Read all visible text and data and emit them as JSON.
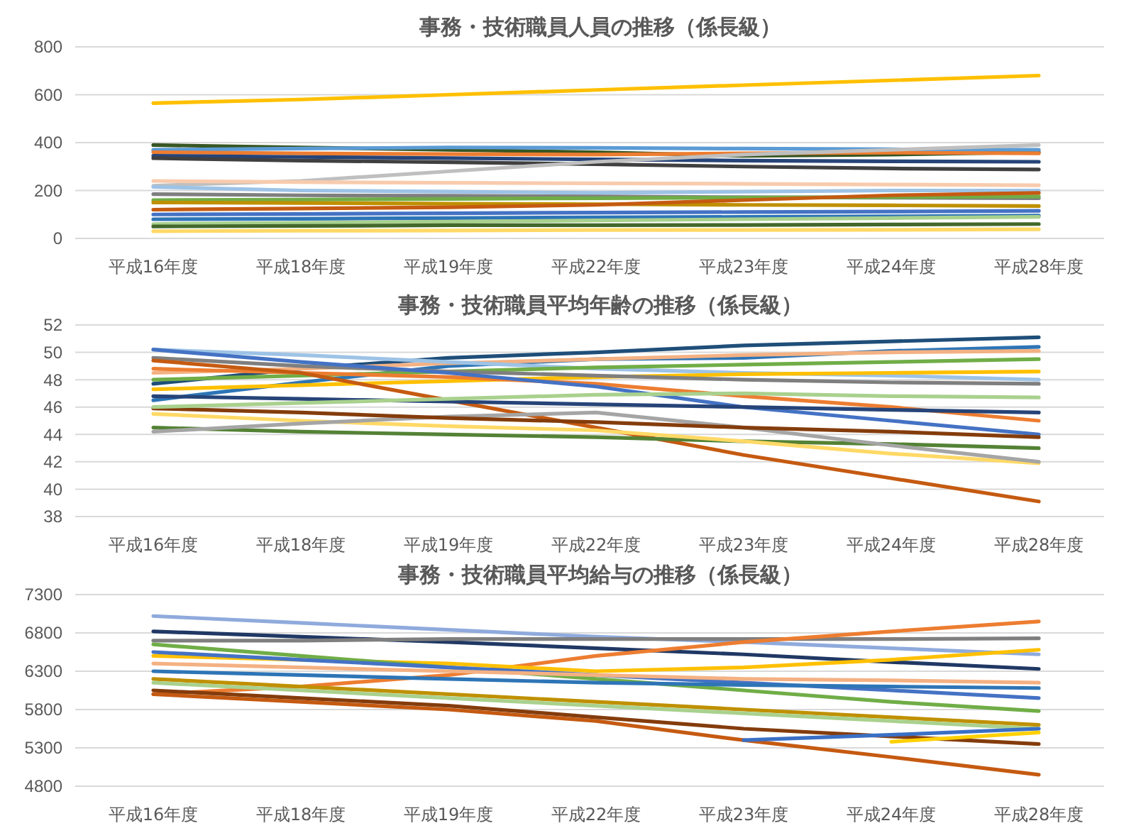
{
  "chart_data": [
    {
      "type": "line",
      "title": "事務・技術職員人員の推移（係長級）",
      "categories": [
        "平成16年度",
        "平成18年度",
        "平成19年度",
        "平成22年度",
        "平成23年度",
        "平成24年度",
        "平成28年度"
      ],
      "ylim": [
        0,
        800
      ],
      "yticks": [
        0,
        200,
        400,
        600,
        800
      ],
      "grid": "y",
      "series": [
        {
          "color": "#ffc000",
          "values": [
            565,
            580,
            600,
            620,
            640,
            660,
            680
          ]
        },
        {
          "color": "#375623",
          "values": [
            390,
            380,
            370,
            360,
            345,
            350,
            360
          ]
        },
        {
          "color": "#5b9bd5",
          "values": [
            370,
            375,
            380,
            378,
            375,
            372,
            370
          ]
        },
        {
          "color": "#ed7d31",
          "values": [
            360,
            355,
            352,
            350,
            355,
            358,
            355
          ]
        },
        {
          "color": "#264478",
          "values": [
            345,
            340,
            335,
            330,
            325,
            322,
            320
          ]
        },
        {
          "color": "#404040",
          "values": [
            335,
            325,
            318,
            310,
            300,
            292,
            288
          ]
        },
        {
          "color": "#bfbfbf",
          "values": [
            220,
            240,
            280,
            320,
            350,
            370,
            390
          ]
        },
        {
          "color": "#f8cbad",
          "values": [
            240,
            235,
            232,
            230,
            228,
            225,
            222
          ]
        },
        {
          "color": "#9dc3e6",
          "values": [
            215,
            200,
            195,
            190,
            195,
            200,
            200
          ]
        },
        {
          "color": "#7f7f7f",
          "values": [
            185,
            180,
            178,
            175,
            172,
            170,
            168
          ]
        },
        {
          "color": "#70ad47",
          "values": [
            160,
            162,
            165,
            168,
            170,
            172,
            175
          ]
        },
        {
          "color": "#bf9000",
          "values": [
            150,
            148,
            145,
            143,
            140,
            138,
            135
          ]
        },
        {
          "color": "#c55a11",
          "values": [
            120,
            125,
            130,
            140,
            160,
            180,
            190
          ]
        },
        {
          "color": "#4472c4",
          "values": [
            100,
            102,
            105,
            108,
            110,
            112,
            115
          ]
        },
        {
          "color": "#2e75b6",
          "values": [
            80,
            82,
            85,
            88,
            90,
            92,
            95
          ]
        },
        {
          "color": "#a9d18e",
          "values": [
            60,
            65,
            70,
            75,
            80,
            85,
            90
          ]
        },
        {
          "color": "#43682b",
          "values": [
            50,
            52,
            55,
            55,
            56,
            58,
            60
          ]
        },
        {
          "color": "#ffd966",
          "values": [
            30,
            32,
            33,
            35,
            35,
            36,
            38
          ]
        }
      ]
    },
    {
      "type": "line",
      "title": "事務・技術職員平均年齢の推移（係長級）",
      "categories": [
        "平成16年度",
        "平成18年度",
        "平成19年度",
        "平成22年度",
        "平成23年度",
        "平成24年度",
        "平成28年度"
      ],
      "ylim": [
        38,
        52
      ],
      "yticks": [
        38,
        40,
        42,
        44,
        46,
        48,
        50,
        52
      ],
      "grid": "y",
      "series": [
        {
          "color": "#1f4e79",
          "values": [
            47.7,
            48.8,
            49.6,
            50.0,
            50.5,
            50.8,
            51.1
          ]
        },
        {
          "color": "#2e75b6",
          "values": [
            46.5,
            47.8,
            49.0,
            49.5,
            49.6,
            50.1,
            50.4
          ]
        },
        {
          "color": "#f4b183",
          "values": [
            48.5,
            48.8,
            49.2,
            49.5,
            49.8,
            50.0,
            50.1
          ]
        },
        {
          "color": "#9dc3e6",
          "values": [
            50.2,
            49.8,
            49.3,
            48.8,
            48.5,
            48.3,
            48.0
          ]
        },
        {
          "color": "#70ad47",
          "values": [
            48.0,
            48.3,
            48.6,
            48.9,
            49.1,
            49.3,
            49.5
          ]
        },
        {
          "color": "#ffc000",
          "values": [
            47.3,
            47.6,
            47.9,
            48.2,
            48.4,
            48.5,
            48.6
          ]
        },
        {
          "color": "#7f7f7f",
          "values": [
            49.6,
            49.0,
            48.6,
            48.3,
            48.0,
            47.8,
            47.7
          ]
        },
        {
          "color": "#ed7d31",
          "values": [
            48.8,
            48.5,
            48.2,
            47.7,
            46.8,
            46.0,
            45.0
          ]
        },
        {
          "color": "#4472c4",
          "values": [
            50.2,
            49.3,
            48.5,
            47.5,
            46.0,
            45.0,
            44.0
          ]
        },
        {
          "color": "#c55a11",
          "values": [
            49.4,
            48.5,
            46.5,
            44.5,
            42.5,
            40.8,
            39.1
          ]
        },
        {
          "color": "#548235",
          "values": [
            44.5,
            44.2,
            44.0,
            43.8,
            43.5,
            43.3,
            43.0
          ]
        },
        {
          "color": "#ffd966",
          "values": [
            45.5,
            45.0,
            44.6,
            44.3,
            43.5,
            42.6,
            41.9
          ]
        },
        {
          "color": "#a5a5a5",
          "values": [
            44.2,
            44.8,
            45.3,
            45.6,
            44.5,
            43.2,
            42.0
          ]
        },
        {
          "color": "#843c0c",
          "values": [
            45.9,
            45.6,
            45.2,
            44.9,
            44.5,
            44.2,
            43.8
          ]
        },
        {
          "color": "#264478",
          "values": [
            46.8,
            46.6,
            46.4,
            46.2,
            46.0,
            45.8,
            45.6
          ]
        },
        {
          "color": "#a9d18e",
          "values": [
            46.0,
            46.3,
            46.6,
            46.9,
            47.0,
            46.8,
            46.7
          ]
        }
      ]
    },
    {
      "type": "line",
      "title": "事務・技術職員平均給与の推移（係長級）",
      "categories": [
        "平成16年度",
        "平成18年度",
        "平成19年度",
        "平成22年度",
        "平成23年度",
        "平成24年度",
        "平成28年度"
      ],
      "ylim": [
        4800,
        7300
      ],
      "yticks": [
        4800,
        5300,
        5800,
        6300,
        6800,
        7300
      ],
      "grid": "y",
      "series": [
        {
          "color": "#8faadc",
          "values": [
            7020,
            6930,
            6840,
            6750,
            6680,
            6600,
            6520
          ]
        },
        {
          "color": "#203864",
          "values": [
            6820,
            6750,
            6680,
            6600,
            6520,
            6420,
            6330
          ]
        },
        {
          "color": "#7f7f7f",
          "values": [
            6700,
            6700,
            6720,
            6720,
            6720,
            6720,
            6730
          ]
        },
        {
          "color": "#ed7d31",
          "values": [
            6000,
            6100,
            6250,
            6500,
            6680,
            6820,
            6950
          ]
        },
        {
          "color": "#ffc000",
          "values": [
            6500,
            6450,
            6400,
            6300,
            6350,
            6450,
            6580
          ]
        },
        {
          "color": "#70ad47",
          "values": [
            6650,
            6500,
            6350,
            6200,
            6050,
            5900,
            5780
          ]
        },
        {
          "color": "#4472c4",
          "values": [
            6550,
            6450,
            6350,
            6250,
            6150,
            6050,
            5950
          ]
        },
        {
          "color": "#f4b183",
          "values": [
            6400,
            6350,
            6300,
            6250,
            6200,
            6180,
            6150
          ]
        },
        {
          "color": "#2e75b6",
          "values": [
            6300,
            6250,
            6200,
            6150,
            6120,
            6100,
            6080
          ]
        },
        {
          "color": "#bf9000",
          "values": [
            6200,
            6100,
            6000,
            5900,
            5800,
            5700,
            5600
          ]
        },
        {
          "color": "#c55a11",
          "values": [
            6000,
            5900,
            5800,
            5650,
            5400,
            5180,
            4950
          ]
        },
        {
          "color": "#843c0c",
          "values": [
            6050,
            5950,
            5850,
            5700,
            5550,
            5450,
            5350
          ]
        },
        {
          "color": "#a9d18e",
          "values": [
            6150,
            6050,
            5950,
            5850,
            5750,
            5650,
            5550
          ]
        },
        {
          "color": "#3a6fc4",
          "values": [
            null,
            null,
            null,
            null,
            5400,
            5470,
            5550
          ]
        },
        {
          "color": "#ffd000",
          "values": [
            null,
            null,
            null,
            null,
            null,
            5380,
            5500
          ]
        }
      ]
    }
  ]
}
